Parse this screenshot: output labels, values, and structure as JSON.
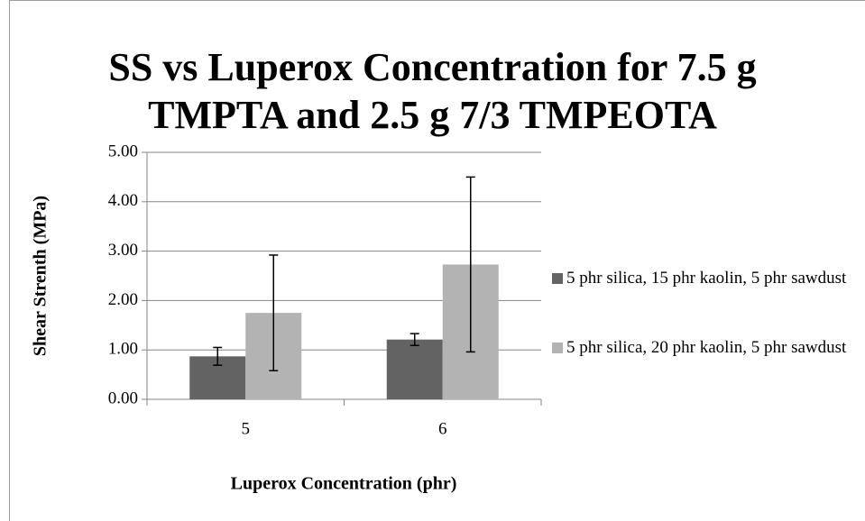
{
  "chart_data": {
    "type": "bar",
    "title": "SS vs Luperox Concentration for 7.5 g TMPTA and  2.5 g 7/3 TMPEOTA",
    "x_label": "Luperox Concentration (phr)",
    "y_label": "Shear Strenth (MPa)",
    "categories": [
      "5",
      "6"
    ],
    "series": [
      {
        "name": "5 phr silica, 15 phr kaolin, 5 phr sawdust",
        "color": "#636363",
        "values": [
          0.87,
          1.21
        ],
        "errors": [
          0.18,
          0.12
        ]
      },
      {
        "name": "5 phr silica, 20 phr kaolin, 5 phr sawdust",
        "color": "#b3b3b3",
        "values": [
          1.75,
          2.73
        ],
        "errors": [
          1.17,
          1.77
        ]
      }
    ],
    "ylim": [
      0,
      5
    ],
    "yticks": [
      {
        "value": 0,
        "label": "0.00"
      },
      {
        "value": 1,
        "label": "1.00"
      },
      {
        "value": 2,
        "label": "2.00"
      },
      {
        "value": 3,
        "label": "3.00"
      },
      {
        "value": 4,
        "label": "4.00"
      },
      {
        "value": 5,
        "label": "5.00"
      }
    ],
    "grid": true,
    "legend": "right"
  }
}
